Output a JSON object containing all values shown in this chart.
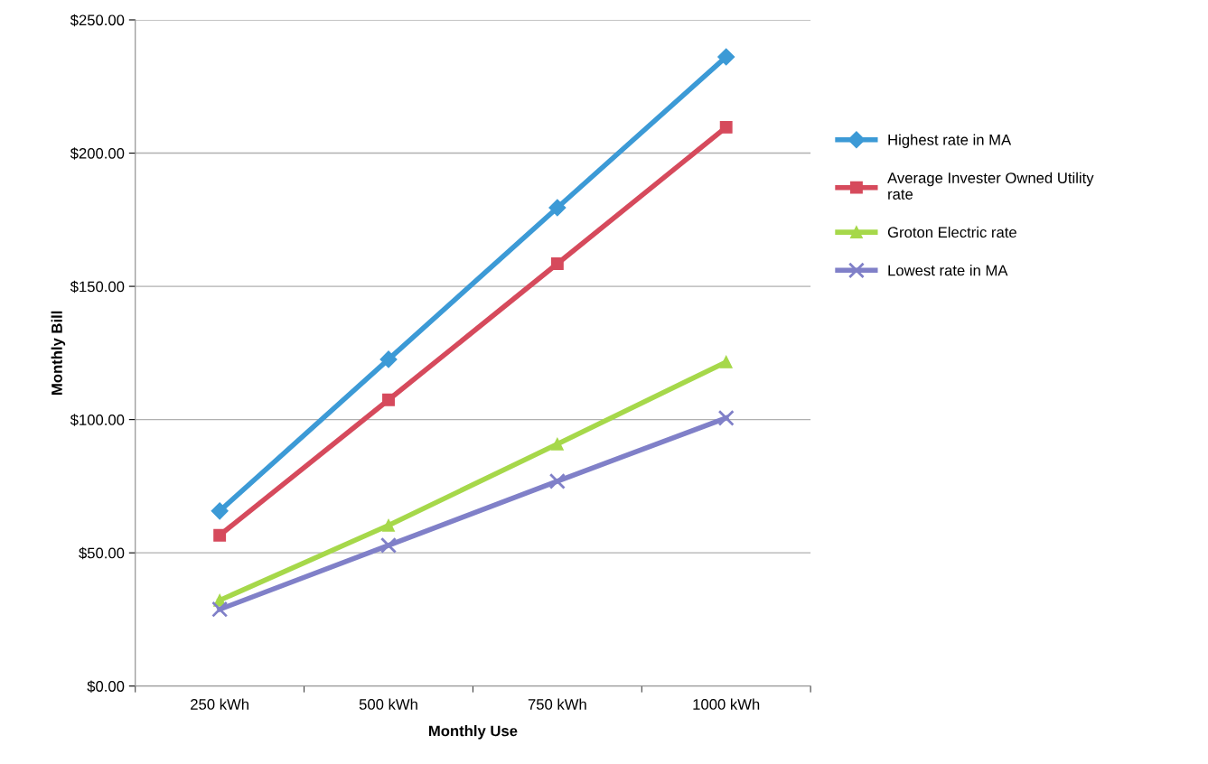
{
  "chart_data": {
    "type": "line",
    "xlabel": "Monthly Use",
    "ylabel": "Monthly Bill",
    "categories": [
      "250 kWh",
      "500 kWh",
      "750 kWh",
      "1000 kWh"
    ],
    "series": [
      {
        "name": "Highest rate in MA",
        "color": "#3c9ad6",
        "marker": "diamond",
        "values": [
          65.7,
          122.6,
          179.5,
          236.1
        ]
      },
      {
        "name": "Average Invester Owned Utility rate",
        "color": "#d64a5c",
        "marker": "square",
        "values": [
          56.6,
          107.4,
          158.5,
          209.7
        ]
      },
      {
        "name": "Groton Electric rate",
        "color": "#a6d84a",
        "marker": "triangle",
        "values": [
          32.2,
          60.3,
          90.8,
          121.6
        ]
      },
      {
        "name": "Lowest rate in MA",
        "color": "#8080c8",
        "marker": "cross",
        "values": [
          28.8,
          52.8,
          76.9,
          100.6
        ]
      }
    ],
    "ylim": [
      0,
      250
    ],
    "yticks": [
      {
        "value": 0,
        "label": "$0.00"
      },
      {
        "value": 50,
        "label": "$50.00"
      },
      {
        "value": 100,
        "label": "$100.00"
      },
      {
        "value": 150,
        "label": "$150.00"
      },
      {
        "value": 200,
        "label": "$200.00"
      },
      {
        "value": 250,
        "label": "$250.00"
      }
    ],
    "grid": "y",
    "legend": "right",
    "line_style": "solid"
  }
}
